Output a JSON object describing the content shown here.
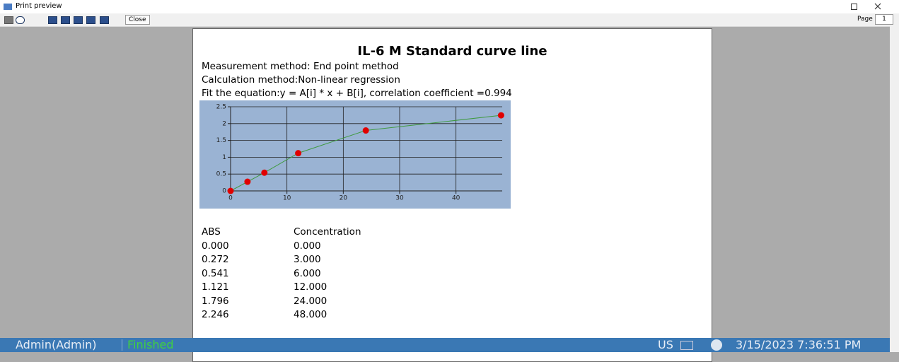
{
  "window": {
    "title": "Print preview",
    "close_button": "Close",
    "page_label": "Page",
    "page_number": "1"
  },
  "document": {
    "title": "IL-6 M Standard curve line",
    "lines": [
      "Measurement method: End point method",
      "Calculation method:Non-linear regression",
      "Fit the equation:y = A[i] * x + B[i], correlation coefficient =0.994"
    ],
    "table": {
      "headers": [
        "ABS",
        "Concentration"
      ],
      "rows": [
        [
          "0.000",
          "0.000"
        ],
        [
          "0.272",
          "3.000"
        ],
        [
          "0.541",
          "6.000"
        ],
        [
          "1.121",
          "12.000"
        ],
        [
          "1.796",
          "24.000"
        ],
        [
          "2.246",
          "48.000"
        ]
      ]
    }
  },
  "chart_data": {
    "type": "line",
    "x": [
      0,
      3,
      6,
      12,
      24,
      48
    ],
    "values": [
      0,
      0.272,
      0.541,
      1.121,
      1.796,
      2.246
    ],
    "point_color": "#e00000",
    "line_color": "#3f9a3f",
    "background": "#9ab3d3",
    "grid": true,
    "xlim": [
      0,
      48.2
    ],
    "xticks": [
      0,
      10,
      20,
      30,
      40
    ],
    "ylim": [
      0,
      2.5
    ],
    "yticks": [
      0,
      0.5,
      1,
      1.5,
      2,
      2.5
    ]
  },
  "status_bar": {
    "user": "Admin(Admin)",
    "state": "Finished",
    "language": "US",
    "datetime": "3/15/2023 7:36:51 PM"
  }
}
